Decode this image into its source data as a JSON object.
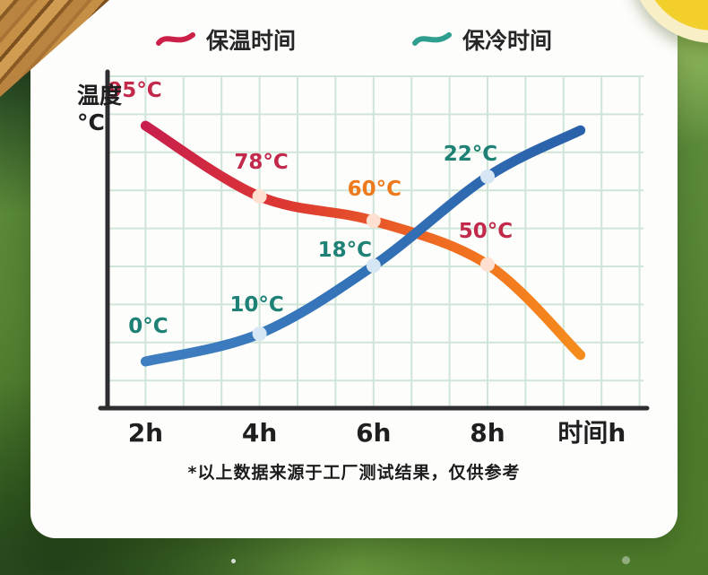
{
  "page": {
    "footnote": "*以上数据来源于工厂测试结果，仅供参考"
  },
  "chart_data": {
    "type": "line",
    "title": "",
    "y_axis_label": "温度",
    "y_axis_unit": "°C",
    "x_axis_label": "时间h",
    "grid": true,
    "legend_position": "top",
    "x_range_hours": [
      2,
      10
    ],
    "colors": {
      "grid": "#cfe5d8",
      "axis": "#2e2e30",
      "tick": "#1f1f1f",
      "heat_accent": "#cb2148",
      "cold_accent": "#2f9e8e"
    },
    "legend": [
      {
        "label": "保温时间",
        "color": "#cb2148"
      },
      {
        "label": "保冷时间",
        "color": "#2f9e8e"
      }
    ],
    "x_ticks": [
      {
        "label": "2h",
        "h": 2
      },
      {
        "label": "4h",
        "h": 4
      },
      {
        "label": "6h",
        "h": 6
      },
      {
        "label": "8h",
        "h": 8
      },
      {
        "label": "时间h",
        "h": 9.83
      }
    ],
    "series": [
      {
        "name": "保温时间",
        "unit": "°C",
        "line_gradient": [
          "#c81e4d",
          "#dd3931",
          "#ef6a22",
          "#f68c1c"
        ],
        "dot_fill": "#ffdfd0",
        "points": [
          {
            "h": 2,
            "temp": 95,
            "label": "95°C",
            "label_color": "#c2294a",
            "grid_row": 1.3,
            "dot": false,
            "label_dx": -12,
            "label_dy": -32
          },
          {
            "h": 4,
            "temp": 78,
            "label": "78°C",
            "label_color": "#c2294a",
            "grid_row": 3.16,
            "dot": true,
            "label_dx": 2,
            "label_dy": -31
          },
          {
            "h": 6,
            "temp": 60,
            "label": "60°C",
            "label_color": "#ee7a1d",
            "grid_row": 3.8,
            "dot": true,
            "label_dx": 1,
            "label_dy": -28
          },
          {
            "h": 8,
            "temp": 50,
            "label": "50°C",
            "label_color": "#c2294a",
            "grid_row": 4.95,
            "dot": true,
            "label_dx": -2,
            "label_dy": -30
          },
          {
            "h": 9.63,
            "temp": null,
            "label": "",
            "label_color": "",
            "grid_row": 7.33,
            "dot": false,
            "label_dx": 0,
            "label_dy": 0
          }
        ]
      },
      {
        "name": "保冷时间",
        "unit": "°C",
        "line_gradient": [
          "#3f7fc1",
          "#3372b7",
          "#2a61aa"
        ],
        "dot_fill": "#d7e6f5",
        "points": [
          {
            "h": 2,
            "temp": 0,
            "label": "0°C",
            "label_color": "#1d8176",
            "grid_row": 7.5,
            "dot": false,
            "label_dx": 3,
            "label_dy": -32
          },
          {
            "h": 4,
            "temp": 10,
            "label": "10°C",
            "label_color": "#1d8176",
            "grid_row": 6.77,
            "dot": true,
            "label_dx": -3,
            "label_dy": -25
          },
          {
            "h": 6,
            "temp": 18,
            "label": "18°C",
            "label_color": "#1d8176",
            "grid_row": 4.98,
            "dot": true,
            "label_dx": -32,
            "label_dy": -10
          },
          {
            "h": 8,
            "temp": 22,
            "label": "22°C",
            "label_color": "#1d8176",
            "grid_row": 2.64,
            "dot": true,
            "label_dx": -19,
            "label_dy": -18
          },
          {
            "h": 9.63,
            "temp": null,
            "label": "",
            "label_color": "",
            "grid_row": 1.42,
            "dot": false,
            "label_dx": 0,
            "label_dy": 0
          }
        ]
      }
    ]
  }
}
